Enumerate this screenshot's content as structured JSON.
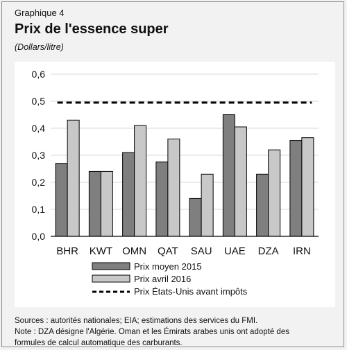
{
  "header": {
    "label": "Graphique 4",
    "title": "Prix de l'essence super",
    "unit": "(Dollars/litre)"
  },
  "chart_data": {
    "type": "bar",
    "categories": [
      "BHR",
      "KWT",
      "OMN",
      "QAT",
      "SAU",
      "UAE",
      "DZA",
      "IRN"
    ],
    "series": [
      {
        "name": "Prix moyen 2015",
        "values": [
          0.27,
          0.24,
          0.31,
          0.275,
          0.14,
          0.45,
          0.23,
          0.355
        ],
        "color": "#7f7f7f"
      },
      {
        "name": "Prix avril 2016",
        "values": [
          0.43,
          0.24,
          0.41,
          0.36,
          0.23,
          0.405,
          0.32,
          0.365
        ],
        "color": "#c8c8c8"
      }
    ],
    "reference_line": {
      "name": "Prix États-Unis avant impôts",
      "value": 0.495,
      "style": "dashed",
      "color": "#000000"
    },
    "ylim": [
      0,
      0.6
    ],
    "yticks": [
      "0,0",
      "0,1",
      "0,2",
      "0,3",
      "0,4",
      "0,5",
      "0,6"
    ],
    "grid": true,
    "legend_position": "bottom"
  },
  "notes": [
    "Sources : autorités nationales; EIA; estimations des services du FMI.",
    "Note : DZA désigne l'Algérie. Oman et les Émirats arabes unis ont adopté des",
    "formules de calcul automatique des carburants."
  ]
}
